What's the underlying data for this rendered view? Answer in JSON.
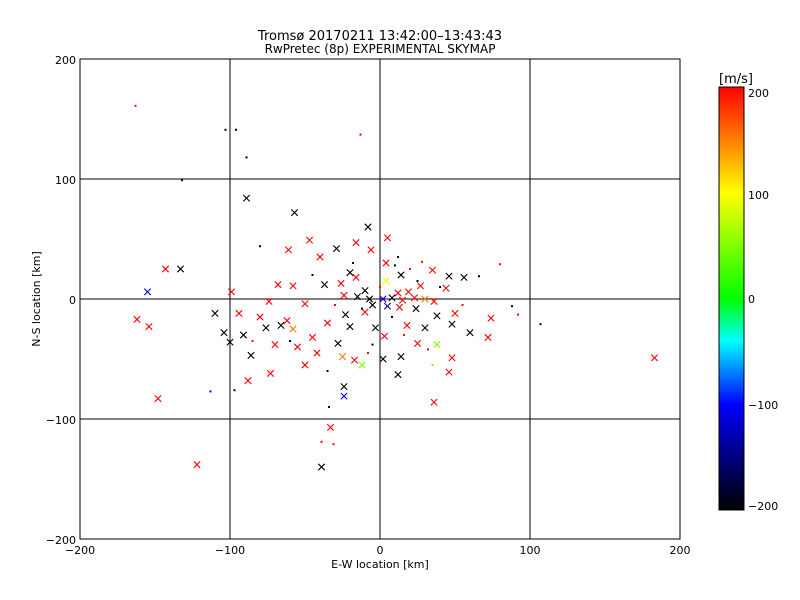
{
  "chart_data": {
    "type": "scatter",
    "title": "Tromsø 20170211 13:42:00–13:43:43",
    "subtitle": "RwPretec (8p) EXPERIMENTAL SKYMAP",
    "xlabel": "E-W location [km]",
    "ylabel": "N-S location [km]",
    "xlim": [
      -200,
      200
    ],
    "ylim": [
      -200,
      200
    ],
    "xticks": [
      "−200",
      "−100",
      "0",
      "100",
      "200"
    ],
    "yticks": [
      "−200",
      "−100",
      "0",
      "100",
      "200"
    ],
    "grid": true,
    "colorbar": {
      "title": "[m/s]",
      "range": [
        -200,
        200
      ],
      "ticks": [
        "200",
        "100",
        "0",
        "−100",
        "−200"
      ],
      "colors": [
        "#ff0000",
        "#ffff00",
        "#00ff00",
        "#00ffff",
        "#0000ff",
        "#000000"
      ]
    },
    "points": [
      {
        "x": -163,
        "y": 161,
        "v": 200,
        "m": "d"
      },
      {
        "x": -103,
        "y": 141,
        "v": -200,
        "m": "d"
      },
      {
        "x": -96,
        "y": 141,
        "v": -200,
        "m": "d"
      },
      {
        "x": -13,
        "y": 137,
        "v": 200,
        "m": "d"
      },
      {
        "x": -89,
        "y": 118,
        "v": -200,
        "m": "d"
      },
      {
        "x": -132,
        "y": 99,
        "v": -200,
        "m": "d"
      },
      {
        "x": -89,
        "y": 84,
        "v": -200,
        "m": "x"
      },
      {
        "x": -57,
        "y": 72,
        "v": -200,
        "m": "x"
      },
      {
        "x": -8,
        "y": 60,
        "v": -200,
        "m": "x"
      },
      {
        "x": 5,
        "y": 51,
        "v": 200,
        "m": "x"
      },
      {
        "x": -47,
        "y": 49,
        "v": 200,
        "m": "x"
      },
      {
        "x": -16,
        "y": 47,
        "v": 200,
        "m": "x"
      },
      {
        "x": -80,
        "y": 44,
        "v": -200,
        "m": "d"
      },
      {
        "x": -61,
        "y": 41,
        "v": 200,
        "m": "x"
      },
      {
        "x": -29,
        "y": 42,
        "v": -200,
        "m": "x"
      },
      {
        "x": -6,
        "y": 41,
        "v": 200,
        "m": "x"
      },
      {
        "x": -40,
        "y": 35,
        "v": 200,
        "m": "x"
      },
      {
        "x": 28,
        "y": 31,
        "v": 200,
        "m": "d"
      },
      {
        "x": 4,
        "y": 30,
        "v": 200,
        "m": "x"
      },
      {
        "x": 80,
        "y": 29,
        "v": 200,
        "m": "d"
      },
      {
        "x": -143,
        "y": 25,
        "v": 200,
        "m": "x"
      },
      {
        "x": -133,
        "y": 25,
        "v": -200,
        "m": "x"
      },
      {
        "x": 35,
        "y": 24,
        "v": 200,
        "m": "x"
      },
      {
        "x": -20,
        "y": 22,
        "v": -200,
        "m": "x"
      },
      {
        "x": 14,
        "y": 20,
        "v": -200,
        "m": "x"
      },
      {
        "x": 46,
        "y": 19,
        "v": -200,
        "m": "x"
      },
      {
        "x": 56,
        "y": 18,
        "v": -200,
        "m": "x"
      },
      {
        "x": 66,
        "y": 19,
        "v": -200,
        "m": "d"
      },
      {
        "x": -16,
        "y": 18,
        "v": 200,
        "m": "x"
      },
      {
        "x": 4,
        "y": 15,
        "v": 100,
        "m": "x"
      },
      {
        "x": -68,
        "y": 12,
        "v": 200,
        "m": "x"
      },
      {
        "x": -58,
        "y": 11,
        "v": 200,
        "m": "x"
      },
      {
        "x": -37,
        "y": 12,
        "v": -200,
        "m": "x"
      },
      {
        "x": -26,
        "y": 13,
        "v": 200,
        "m": "x"
      },
      {
        "x": 27,
        "y": 11,
        "v": 200,
        "m": "x"
      },
      {
        "x": 44,
        "y": 9,
        "v": 200,
        "m": "x"
      },
      {
        "x": -155,
        "y": 6,
        "v": -100,
        "m": "x"
      },
      {
        "x": -99,
        "y": 6,
        "v": 200,
        "m": "x"
      },
      {
        "x": -10,
        "y": 7,
        "v": -200,
        "m": "x"
      },
      {
        "x": 12,
        "y": 5,
        "v": 200,
        "m": "x"
      },
      {
        "x": 19,
        "y": 6,
        "v": 200,
        "m": "x"
      },
      {
        "x": -24,
        "y": 3,
        "v": 200,
        "m": "x"
      },
      {
        "x": -15,
        "y": 2,
        "v": -200,
        "m": "x"
      },
      {
        "x": -7,
        "y": 0,
        "v": -200,
        "m": "x"
      },
      {
        "x": 2,
        "y": 0,
        "v": -100,
        "m": "x"
      },
      {
        "x": 8,
        "y": 1,
        "v": -200,
        "m": "x"
      },
      {
        "x": 15,
        "y": -1,
        "v": 200,
        "m": "x"
      },
      {
        "x": 23,
        "y": 1,
        "v": 200,
        "m": "x"
      },
      {
        "x": 30,
        "y": 0,
        "v": 150,
        "m": "x"
      },
      {
        "x": 36,
        "y": -2,
        "v": 200,
        "m": "x"
      },
      {
        "x": -74,
        "y": -2,
        "v": 200,
        "m": "x"
      },
      {
        "x": -50,
        "y": -4,
        "v": 200,
        "m": "x"
      },
      {
        "x": -5,
        "y": -5,
        "v": -200,
        "m": "x"
      },
      {
        "x": 5,
        "y": -6,
        "v": -150,
        "m": "x"
      },
      {
        "x": 13,
        "y": -7,
        "v": 200,
        "m": "x"
      },
      {
        "x": 24,
        "y": -8,
        "v": -200,
        "m": "x"
      },
      {
        "x": 88,
        "y": -6,
        "v": -200,
        "m": "d"
      },
      {
        "x": 92,
        "y": -13,
        "v": 200,
        "m": "d"
      },
      {
        "x": 107,
        "y": -21,
        "v": -200,
        "m": "d"
      },
      {
        "x": -110,
        "y": -12,
        "v": -200,
        "m": "x"
      },
      {
        "x": -94,
        "y": -12,
        "v": 200,
        "m": "x"
      },
      {
        "x": -80,
        "y": -15,
        "v": 200,
        "m": "x"
      },
      {
        "x": -62,
        "y": -18,
        "v": 200,
        "m": "x"
      },
      {
        "x": -23,
        "y": -13,
        "v": -200,
        "m": "x"
      },
      {
        "x": -10,
        "y": -11,
        "v": 200,
        "m": "x"
      },
      {
        "x": 38,
        "y": -14,
        "v": -200,
        "m": "x"
      },
      {
        "x": 50,
        "y": -12,
        "v": 200,
        "m": "x"
      },
      {
        "x": 74,
        "y": -16,
        "v": 200,
        "m": "x"
      },
      {
        "x": -162,
        "y": -17,
        "v": 200,
        "m": "x"
      },
      {
        "x": -154,
        "y": -23,
        "v": 200,
        "m": "x"
      },
      {
        "x": -76,
        "y": -24,
        "v": -200,
        "m": "x"
      },
      {
        "x": -66,
        "y": -22,
        "v": -200,
        "m": "x"
      },
      {
        "x": -58,
        "y": -25,
        "v": 150,
        "m": "x"
      },
      {
        "x": -35,
        "y": -20,
        "v": 200,
        "m": "x"
      },
      {
        "x": -20,
        "y": -23,
        "v": -200,
        "m": "x"
      },
      {
        "x": -3,
        "y": -24,
        "v": -200,
        "m": "x"
      },
      {
        "x": 18,
        "y": -22,
        "v": 200,
        "m": "x"
      },
      {
        "x": 30,
        "y": -24,
        "v": -200,
        "m": "x"
      },
      {
        "x": 48,
        "y": -21,
        "v": -200,
        "m": "x"
      },
      {
        "x": -104,
        "y": -28,
        "v": -200,
        "m": "x"
      },
      {
        "x": -91,
        "y": -30,
        "v": -200,
        "m": "x"
      },
      {
        "x": -45,
        "y": -32,
        "v": 200,
        "m": "x"
      },
      {
        "x": 3,
        "y": -31,
        "v": 200,
        "m": "x"
      },
      {
        "x": 60,
        "y": -28,
        "v": -200,
        "m": "x"
      },
      {
        "x": 72,
        "y": -32,
        "v": 200,
        "m": "x"
      },
      {
        "x": -100,
        "y": -36,
        "v": -200,
        "m": "x"
      },
      {
        "x": -70,
        "y": -38,
        "v": 200,
        "m": "x"
      },
      {
        "x": -55,
        "y": -40,
        "v": 200,
        "m": "x"
      },
      {
        "x": -28,
        "y": -37,
        "v": -200,
        "m": "x"
      },
      {
        "x": 25,
        "y": -37,
        "v": 200,
        "m": "x"
      },
      {
        "x": 38,
        "y": -38,
        "v": 50,
        "m": "x"
      },
      {
        "x": -86,
        "y": -47,
        "v": -200,
        "m": "x"
      },
      {
        "x": -42,
        "y": -45,
        "v": 200,
        "m": "x"
      },
      {
        "x": -25,
        "y": -48,
        "v": 150,
        "m": "x"
      },
      {
        "x": -17,
        "y": -51,
        "v": 200,
        "m": "x"
      },
      {
        "x": 2,
        "y": -50,
        "v": -200,
        "m": "x"
      },
      {
        "x": 14,
        "y": -48,
        "v": -200,
        "m": "x"
      },
      {
        "x": 48,
        "y": -49,
        "v": 200,
        "m": "x"
      },
      {
        "x": -50,
        "y": -55,
        "v": 200,
        "m": "x"
      },
      {
        "x": -12,
        "y": -55,
        "v": 50,
        "m": "x"
      },
      {
        "x": -73,
        "y": -62,
        "v": 200,
        "m": "x"
      },
      {
        "x": 12,
        "y": -63,
        "v": -200,
        "m": "x"
      },
      {
        "x": 46,
        "y": -61,
        "v": 200,
        "m": "x"
      },
      {
        "x": 183,
        "y": -49,
        "v": 200,
        "m": "x"
      },
      {
        "x": -88,
        "y": -68,
        "v": 200,
        "m": "x"
      },
      {
        "x": -24,
        "y": -73,
        "v": -200,
        "m": "x"
      },
      {
        "x": -97,
        "y": -76,
        "v": -200,
        "m": "d"
      },
      {
        "x": -113,
        "y": -77,
        "v": -100,
        "m": "d"
      },
      {
        "x": -24,
        "y": -81,
        "v": -100,
        "m": "x"
      },
      {
        "x": -148,
        "y": -83,
        "v": 200,
        "m": "x"
      },
      {
        "x": 36,
        "y": -86,
        "v": 200,
        "m": "x"
      },
      {
        "x": -34,
        "y": -90,
        "v": -200,
        "m": "d"
      },
      {
        "x": -33,
        "y": -107,
        "v": 200,
        "m": "x"
      },
      {
        "x": -39,
        "y": -119,
        "v": 200,
        "m": "d"
      },
      {
        "x": -31,
        "y": -121,
        "v": 200,
        "m": "d"
      },
      {
        "x": -122,
        "y": -138,
        "v": 200,
        "m": "x"
      },
      {
        "x": -39,
        "y": -140,
        "v": -200,
        "m": "x"
      },
      {
        "x": -30,
        "y": -5,
        "v": 200,
        "m": "d"
      },
      {
        "x": -18,
        "y": 30,
        "v": -200,
        "m": "d"
      },
      {
        "x": 10,
        "y": 28,
        "v": -200,
        "m": "d"
      },
      {
        "x": 20,
        "y": 25,
        "v": 200,
        "m": "d"
      },
      {
        "x": -12,
        "y": -8,
        "v": -200,
        "m": "d"
      },
      {
        "x": 8,
        "y": -15,
        "v": -200,
        "m": "d"
      },
      {
        "x": 16,
        "y": -30,
        "v": 200,
        "m": "d"
      },
      {
        "x": -5,
        "y": -38,
        "v": -200,
        "m": "d"
      },
      {
        "x": 32,
        "y": -42,
        "v": 200,
        "m": "d"
      },
      {
        "x": 40,
        "y": 10,
        "v": -200,
        "m": "d"
      },
      {
        "x": -60,
        "y": -35,
        "v": -200,
        "m": "d"
      },
      {
        "x": -45,
        "y": 20,
        "v": -200,
        "m": "d"
      },
      {
        "x": 55,
        "y": -5,
        "v": 200,
        "m": "d"
      },
      {
        "x": -35,
        "y": -60,
        "v": -200,
        "m": "d"
      },
      {
        "x": 0,
        "y": 10,
        "v": 200,
        "m": "d"
      },
      {
        "x": 35,
        "y": -55,
        "v": 50,
        "m": "d"
      },
      {
        "x": -85,
        "y": -35,
        "v": 200,
        "m": "d"
      },
      {
        "x": 25,
        "y": 15,
        "v": -200,
        "m": "d"
      },
      {
        "x": -8,
        "y": -45,
        "v": 200,
        "m": "d"
      },
      {
        "x": 12,
        "y": 35,
        "v": -200,
        "m": "d"
      }
    ]
  }
}
